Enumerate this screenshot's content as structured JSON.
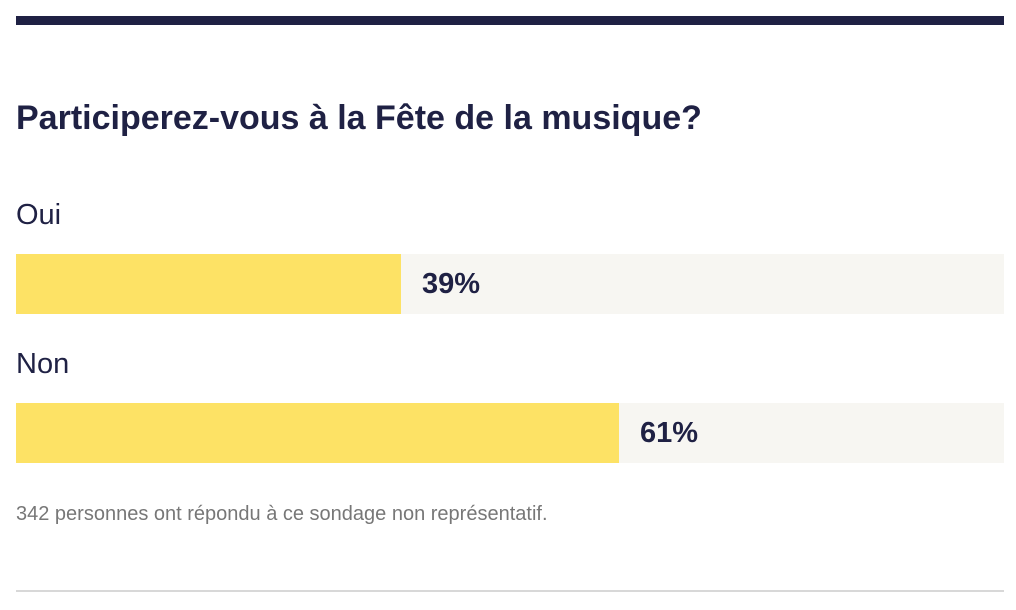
{
  "colors": {
    "accent": "#1f2144",
    "bar_fill": "#fde265",
    "bar_track": "#f7f6f2",
    "note_text": "#777777",
    "divider": "#d8d8d8"
  },
  "poll": {
    "title": "Participerez-vous à la Fête de la musique?",
    "options": [
      {
        "label": "Oui",
        "percent_label": "39%"
      },
      {
        "label": "Non",
        "percent_label": "61%"
      }
    ],
    "note": "342 personnes ont répondu à ce sondage non représentatif."
  },
  "chart_data": {
    "type": "bar",
    "orientation": "horizontal",
    "title": "Participerez-vous à la Fête de la musique?",
    "categories": [
      "Oui",
      "Non"
    ],
    "values": [
      39,
      61
    ],
    "value_labels": [
      "39%",
      "61%"
    ],
    "xlim": [
      0,
      100
    ],
    "grid": false,
    "legend": "none",
    "xlabel": "",
    "ylabel": ""
  }
}
